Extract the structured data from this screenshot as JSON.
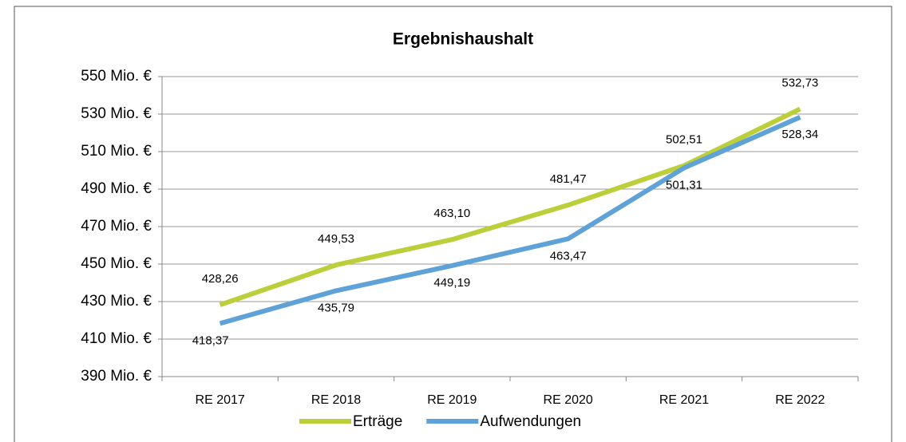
{
  "chart_data": {
    "type": "line",
    "title": "Ergebnishaushalt",
    "categories": [
      "RE 2017",
      "RE 2018",
      "RE 2019",
      "RE 2020",
      "RE 2021",
      "RE 2022"
    ],
    "series": [
      {
        "name": "Erträge",
        "color": "#bccf3a",
        "values": [
          428.26,
          449.53,
          463.1,
          481.47,
          502.51,
          532.73
        ],
        "value_labels": [
          "428,26",
          "449,53",
          "463,10",
          "481,47",
          "502,51",
          "532,73"
        ]
      },
      {
        "name": "Aufwendungen",
        "color": "#5ea2d8",
        "values": [
          418.37,
          435.79,
          449.19,
          463.47,
          501.31,
          528.34
        ],
        "value_labels": [
          "418,37",
          "435,79",
          "449,19",
          "463,47",
          "501,31",
          "528,34"
        ]
      }
    ],
    "ylim": [
      390,
      550
    ],
    "yticks": [
      {
        "value": 390,
        "label": "390 Mio. €"
      },
      {
        "value": 410,
        "label": "410 Mio. €"
      },
      {
        "value": 430,
        "label": "430 Mio. €"
      },
      {
        "value": 450,
        "label": "450 Mio. €"
      },
      {
        "value": 470,
        "label": "470 Mio. €"
      },
      {
        "value": 490,
        "label": "490 Mio. €"
      },
      {
        "value": 510,
        "label": "510 Mio. €"
      },
      {
        "value": 530,
        "label": "530 Mio. €"
      },
      {
        "value": 550,
        "label": "550 Mio. €"
      }
    ],
    "grid": true,
    "legend": "bottom"
  }
}
